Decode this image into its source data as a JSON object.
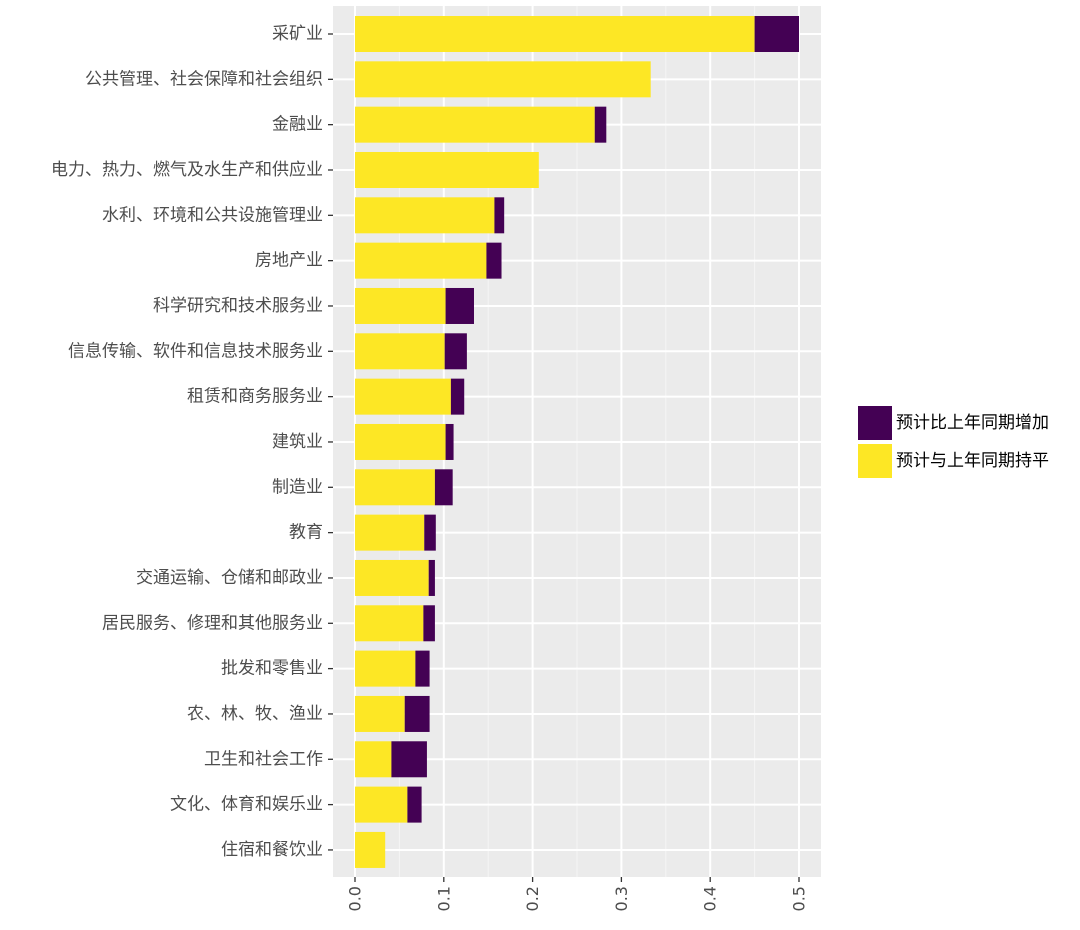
{
  "chart_data": {
    "type": "bar",
    "orientation": "horizontal",
    "stacked": true,
    "grid": true,
    "legend_position": "right",
    "title": "",
    "xlabel": "",
    "ylabel": "",
    "xlim": [
      0,
      0.5
    ],
    "x_ticks": [
      0.0,
      0.1,
      0.2,
      0.3,
      0.4,
      0.5
    ],
    "x_tick_labels": [
      "0.0",
      "0.1",
      "0.2",
      "0.3",
      "0.4",
      "0.5"
    ],
    "categories": [
      "采矿业",
      "公共管理、社会保障和社会组织",
      "金融业",
      "电力、热力、燃气及水生产和供应业",
      "水利、环境和公共设施管理业",
      "房地产业",
      "科学研究和技术服务业",
      "信息传输、软件和信息技术服务业",
      "租赁和商务服务业",
      "建筑业",
      "制造业",
      "教育",
      "交通运输、仓储和邮政业",
      "居民服务、修理和其他服务业",
      "批发和零售业",
      "农、林、牧、渔业",
      "卫生和社会工作",
      "文化、体育和娱乐业",
      "住宿和餐饮业"
    ],
    "series": [
      {
        "name": "预计与上年同期持平",
        "color": "#FDE725",
        "values": [
          0.45,
          0.333,
          0.27,
          0.207,
          0.157,
          0.148,
          0.102,
          0.101,
          0.108,
          0.102,
          0.09,
          0.078,
          0.083,
          0.077,
          0.068,
          0.056,
          0.041,
          0.059,
          0.034
        ]
      },
      {
        "name": "预计比上年同期增加",
        "color": "#440154",
        "values": [
          0.05,
          0.0,
          0.013,
          0.0,
          0.011,
          0.017,
          0.032,
          0.025,
          0.015,
          0.009,
          0.02,
          0.013,
          0.007,
          0.013,
          0.016,
          0.028,
          0.04,
          0.016,
          0.0
        ]
      }
    ],
    "legend_order": [
      "预计比上年同期增加",
      "预计与上年同期持平"
    ]
  }
}
